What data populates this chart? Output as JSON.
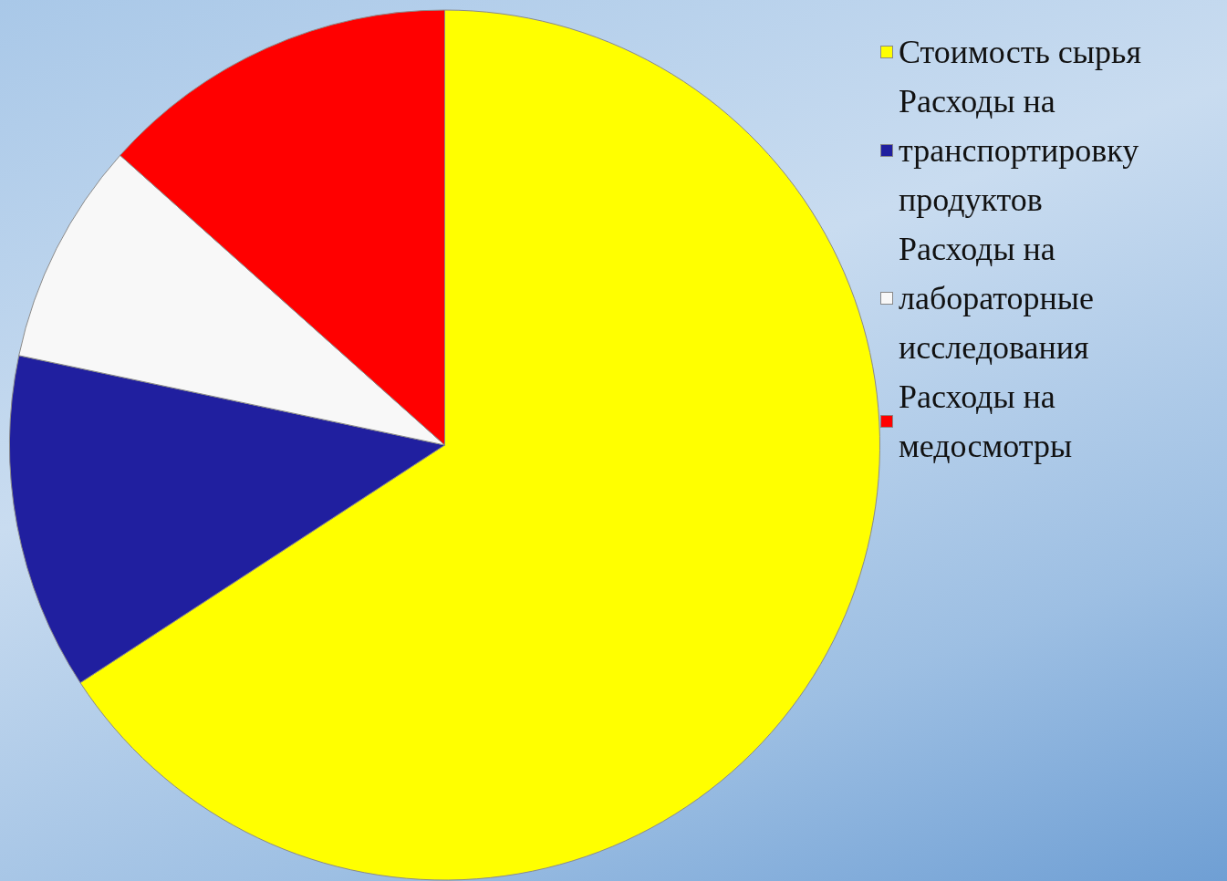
{
  "chart_data": {
    "type": "pie",
    "categories": [
      "Стоимость сырья",
      "Расходы на транспортировку продуктов",
      "Расходы на лабораторные исследования",
      "Расходы на медосмотры"
    ],
    "values": [
      65.8,
      12.5,
      8.3,
      13.4
    ],
    "colors": [
      "#ffff00",
      "#201f9f",
      "#f8f8f8",
      "#ff0000"
    ],
    "legend": "right"
  }
}
